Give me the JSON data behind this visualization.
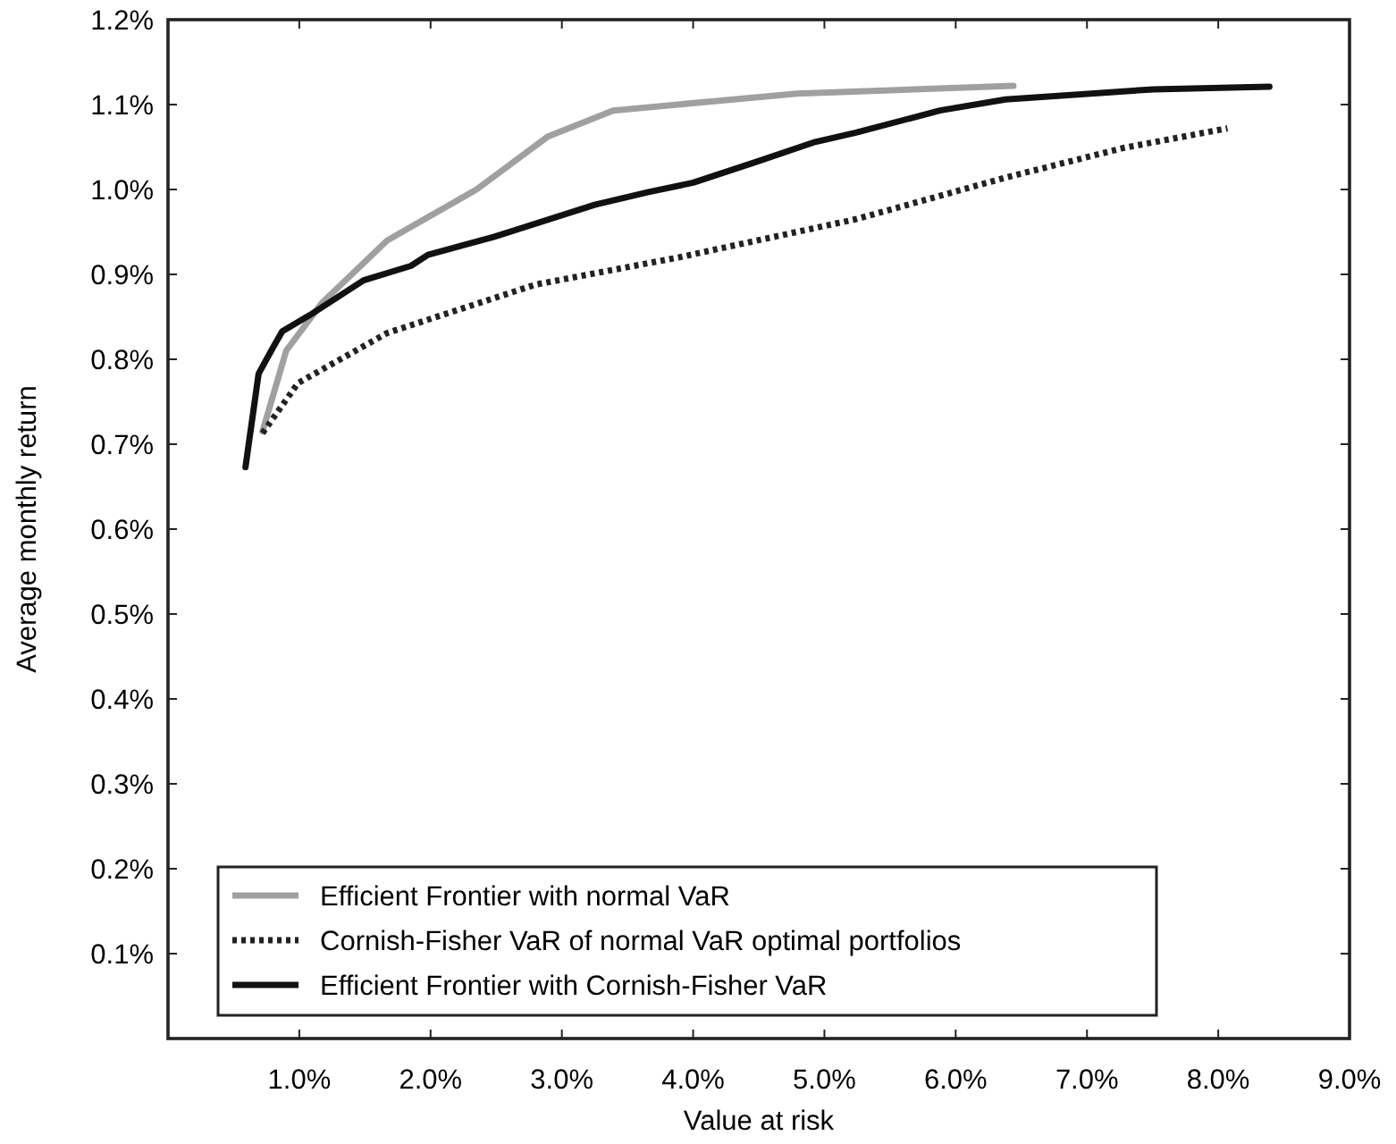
{
  "chart_data": {
    "type": "line",
    "xlabel": "Value at risk",
    "ylabel": "Average monthly return",
    "xlim": [
      0,
      9
    ],
    "ylim": [
      0,
      1.2
    ],
    "xticks": [
      {
        "value": 1,
        "label": "1.0%"
      },
      {
        "value": 2,
        "label": "2.0%"
      },
      {
        "value": 3,
        "label": "3.0%"
      },
      {
        "value": 4,
        "label": "4.0%"
      },
      {
        "value": 5,
        "label": "5.0%"
      },
      {
        "value": 6,
        "label": "6.0%"
      },
      {
        "value": 7,
        "label": "7.0%"
      },
      {
        "value": 8,
        "label": "8.0%"
      },
      {
        "value": 9,
        "label": "9.0%"
      }
    ],
    "yticks": [
      {
        "value": 0.1,
        "label": "0.1%"
      },
      {
        "value": 0.2,
        "label": "0.2%"
      },
      {
        "value": 0.3,
        "label": "0.3%"
      },
      {
        "value": 0.4,
        "label": "0.4%"
      },
      {
        "value": 0.5,
        "label": "0.5%"
      },
      {
        "value": 0.6,
        "label": "0.6%"
      },
      {
        "value": 0.7,
        "label": "0.7%"
      },
      {
        "value": 0.8,
        "label": "0.8%"
      },
      {
        "value": 0.9,
        "label": "0.9%"
      },
      {
        "value": 1.0,
        "label": "1.0%"
      },
      {
        "value": 1.1,
        "label": "1.1%"
      },
      {
        "value": 1.2,
        "label": "1.2%"
      }
    ],
    "grid": false,
    "legend": "bottom left",
    "marker": "none",
    "series": [
      {
        "name": "Efficient Frontier with normal VaR",
        "color": "#a0a0a0",
        "line_style": "solid",
        "x": [
          0.72,
          0.9,
          1.17,
          1.67,
          2.35,
          2.89,
          3.39,
          4.16,
          4.79,
          6.44
        ],
        "values": [
          0.715,
          0.81,
          0.866,
          0.94,
          1.0,
          1.062,
          1.093,
          1.104,
          1.113,
          1.122
        ]
      },
      {
        "name": "Cornish-Fisher VaR of normal VaR optimal portfolios",
        "color": "#222222",
        "line_style": "dotted",
        "x": [
          0.72,
          0.99,
          1.67,
          2.8,
          3.89,
          5.24,
          6.38,
          7.28,
          8.07
        ],
        "values": [
          0.713,
          0.772,
          0.831,
          0.888,
          0.92,
          0.965,
          1.014,
          1.049,
          1.072
        ]
      },
      {
        "name": "Efficient Frontier with Cornish-Fisher VaR",
        "color": "#111111",
        "line_style": "solid",
        "x": [
          0.59,
          0.69,
          0.8,
          0.87,
          1.08,
          1.49,
          1.85,
          1.98,
          2.48,
          3.25,
          3.66,
          4.0,
          4.47,
          4.93,
          5.24,
          5.88,
          6.38,
          7.51,
          8.39
        ],
        "values": [
          0.673,
          0.783,
          0.814,
          0.833,
          0.852,
          0.893,
          0.91,
          0.923,
          0.944,
          0.982,
          0.997,
          1.008,
          1.032,
          1.056,
          1.067,
          1.093,
          1.106,
          1.118,
          1.121
        ]
      }
    ]
  }
}
